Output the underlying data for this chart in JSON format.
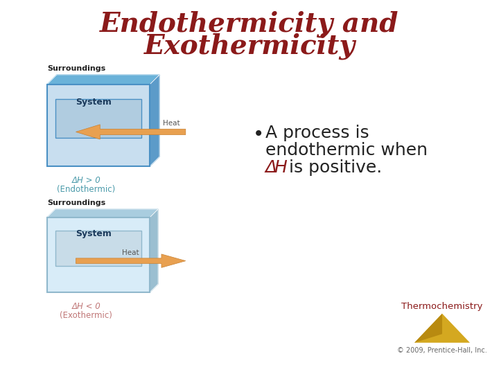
{
  "title_line1": "Endothermicity and",
  "title_line2": "Exothermicity",
  "title_color": "#8B1A1A",
  "title_fontsize": 28,
  "bullet_color": "#222222",
  "delta_color": "#8B1A1A",
  "bullet_fontsize": 18,
  "surroundings_label": "Surroundings",
  "system_label": "System",
  "heat_label": "Heat",
  "endo_formula": "ΔH > 0",
  "endo_label": "(Endothermic)",
  "exo_formula": "ΔH < 0",
  "exo_label": "(Exothermic)",
  "label_color_endo": "#4A9AAA",
  "label_color_exo": "#C07878",
  "surroundings_color": "#222222",
  "surroundings_fontsize": 8,
  "system_fontsize": 9,
  "thermochem_text": "Thermochemistry",
  "copyright_text": "© 2009, Prentice-Hall, Inc.",
  "thermochem_color": "#8B1A1A",
  "copyright_color": "#666666",
  "bg_color": "#FFFFFF",
  "box_outer_color_endo": "#4A90C4",
  "box_inner_color_endo": "#C8DEEF",
  "box_outer_color_exo": "#90B8CC",
  "box_inner_color_exo": "#D8ECF8",
  "box_side_color_endo": "#5AAAD5",
  "box_side_color_exo": "#A0C8DC",
  "system_bg_endo": "#B0CCE0",
  "system_bg_exo": "#C8DCE8",
  "arrow_color": "#E8A050",
  "heat_text_color": "#555555"
}
